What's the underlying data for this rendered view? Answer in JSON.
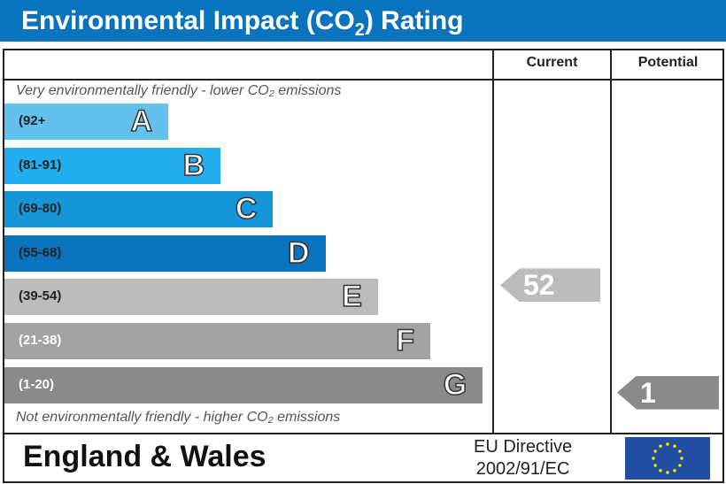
{
  "title": {
    "main": "Environmental Impact (CO",
    "sub": "2",
    "end": ") Rating"
  },
  "columns": {
    "current": "Current",
    "potential": "Potential"
  },
  "top_note": "Very environmentally friendly - lower CO₂ emissions",
  "bottom_note": "Not environmentally friendly - higher CO₂ emissions",
  "footer": {
    "region": "England & Wales",
    "directive_line1": "EU Directive",
    "directive_line2": "2002/91/EC",
    "flag_icon": "eu-flag-icon"
  },
  "chart_data": {
    "type": "bar",
    "categories": [
      "A",
      "B",
      "C",
      "D",
      "E",
      "F",
      "G"
    ],
    "bands": [
      {
        "letter": "A",
        "range": "(92+",
        "color": "#63c1ee",
        "text_color": "#222"
      },
      {
        "letter": "B",
        "range": "(81-91)",
        "color": "#23aef0",
        "text_color": "#222"
      },
      {
        "letter": "C",
        "range": "(69-80)",
        "color": "#1496d7",
        "text_color": "#222"
      },
      {
        "letter": "D",
        "range": "(55-68)",
        "color": "#0a73bd",
        "text_color": "#222"
      },
      {
        "letter": "E",
        "range": "(39-54)",
        "color": "#bcbcbc",
        "text_color": "#222"
      },
      {
        "letter": "F",
        "range": "(21-38)",
        "color": "#a3a3a3",
        "text_color": "#fff"
      },
      {
        "letter": "G",
        "range": "(1-20)",
        "color": "#8a8a8a",
        "text_color": "#fff"
      }
    ],
    "current": {
      "value": 52,
      "band": "E",
      "color": "#bcbcbc"
    },
    "potential": {
      "value": 1,
      "band": "G",
      "color": "#8a8a8a"
    }
  }
}
